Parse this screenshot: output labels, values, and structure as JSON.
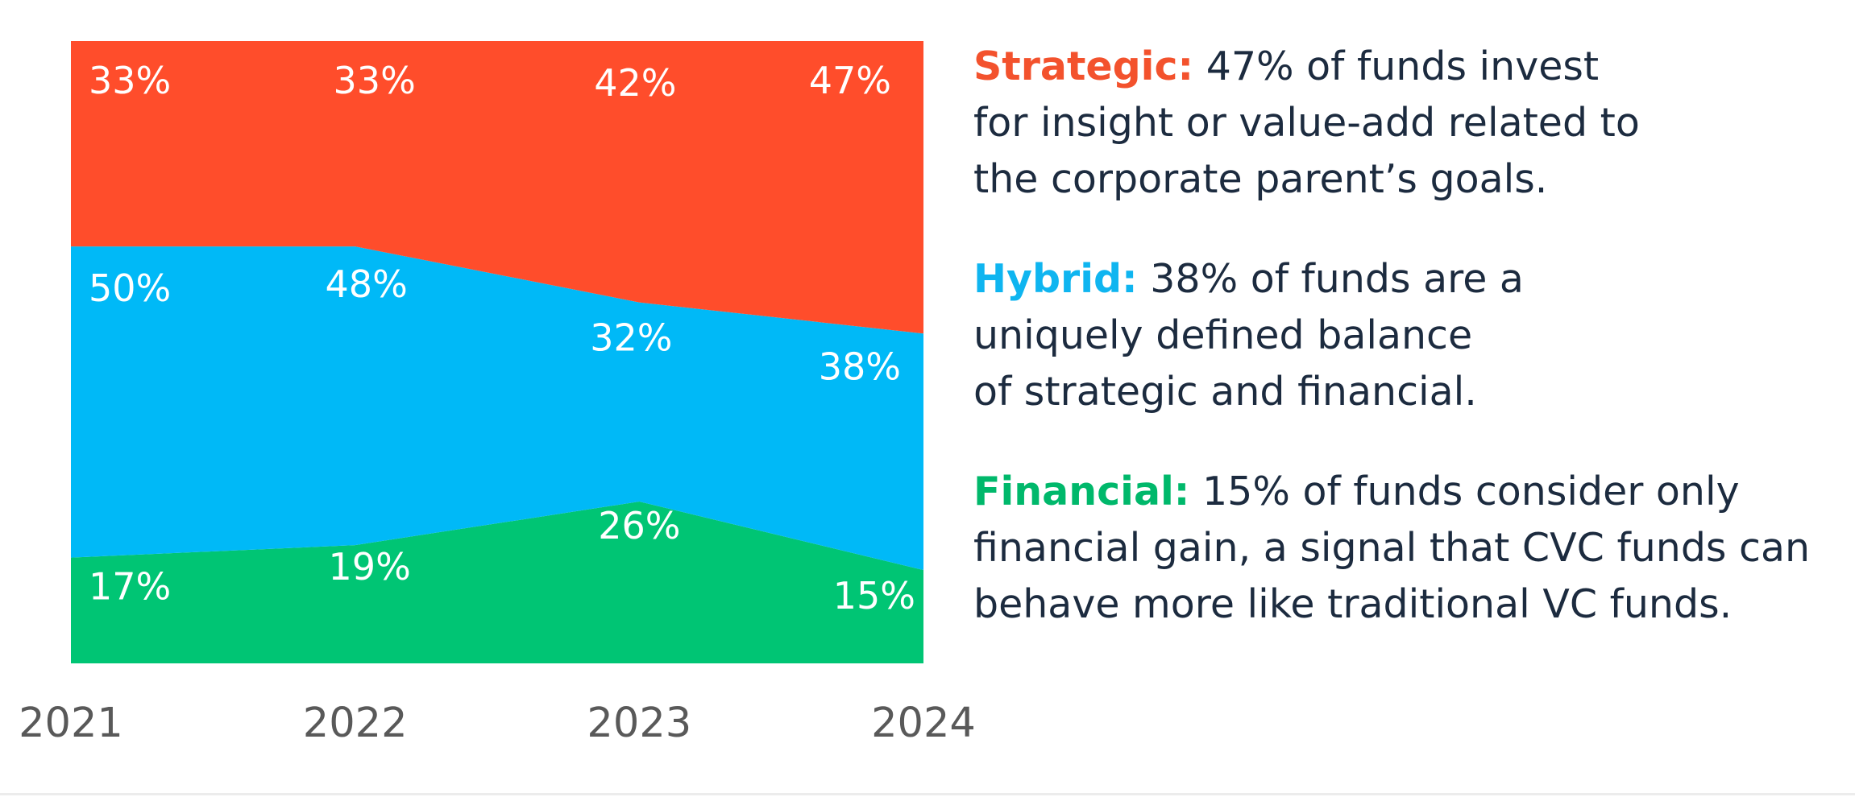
{
  "chart_data": {
    "type": "area",
    "stacked": true,
    "normalized": true,
    "x": [
      "2021",
      "2022",
      "2023",
      "2024"
    ],
    "ylim": [
      0,
      100
    ],
    "grid": false,
    "legend_position": "right",
    "series": [
      {
        "name": "Financial",
        "color": "#00c574",
        "values": [
          17,
          19,
          26,
          15
        ],
        "labels": [
          "17%",
          "19%",
          "26%",
          "15%"
        ]
      },
      {
        "name": "Hybrid",
        "color": "#00b9f7",
        "values": [
          50,
          48,
          32,
          38
        ],
        "labels": [
          "50%",
          "48%",
          "32%",
          "38%"
        ]
      },
      {
        "name": "Strategic",
        "color": "#ff4d2b",
        "values": [
          33,
          33,
          42,
          47
        ],
        "labels": [
          "33%",
          "33%",
          "42%",
          "47%"
        ]
      }
    ]
  },
  "legend": {
    "strategic": {
      "label": "Strategic:",
      "color": "#f3522d",
      "line1": " 47% of funds invest",
      "line2": "for insight or value-add related to",
      "line3": "the corporate parent’s goals."
    },
    "hybrid": {
      "label": "Hybrid:",
      "color": "#0fb5f0",
      "line1": " 38% of funds are a",
      "line2": "uniquely defined balance",
      "line3": "of strategic and financial."
    },
    "financial": {
      "label": "Financial:",
      "color": "#00b86b",
      "line1": " 15% of funds consider only",
      "line2": "financial gain, a signal that CVC funds can",
      "line3": "behave more like traditional VC funds."
    }
  }
}
